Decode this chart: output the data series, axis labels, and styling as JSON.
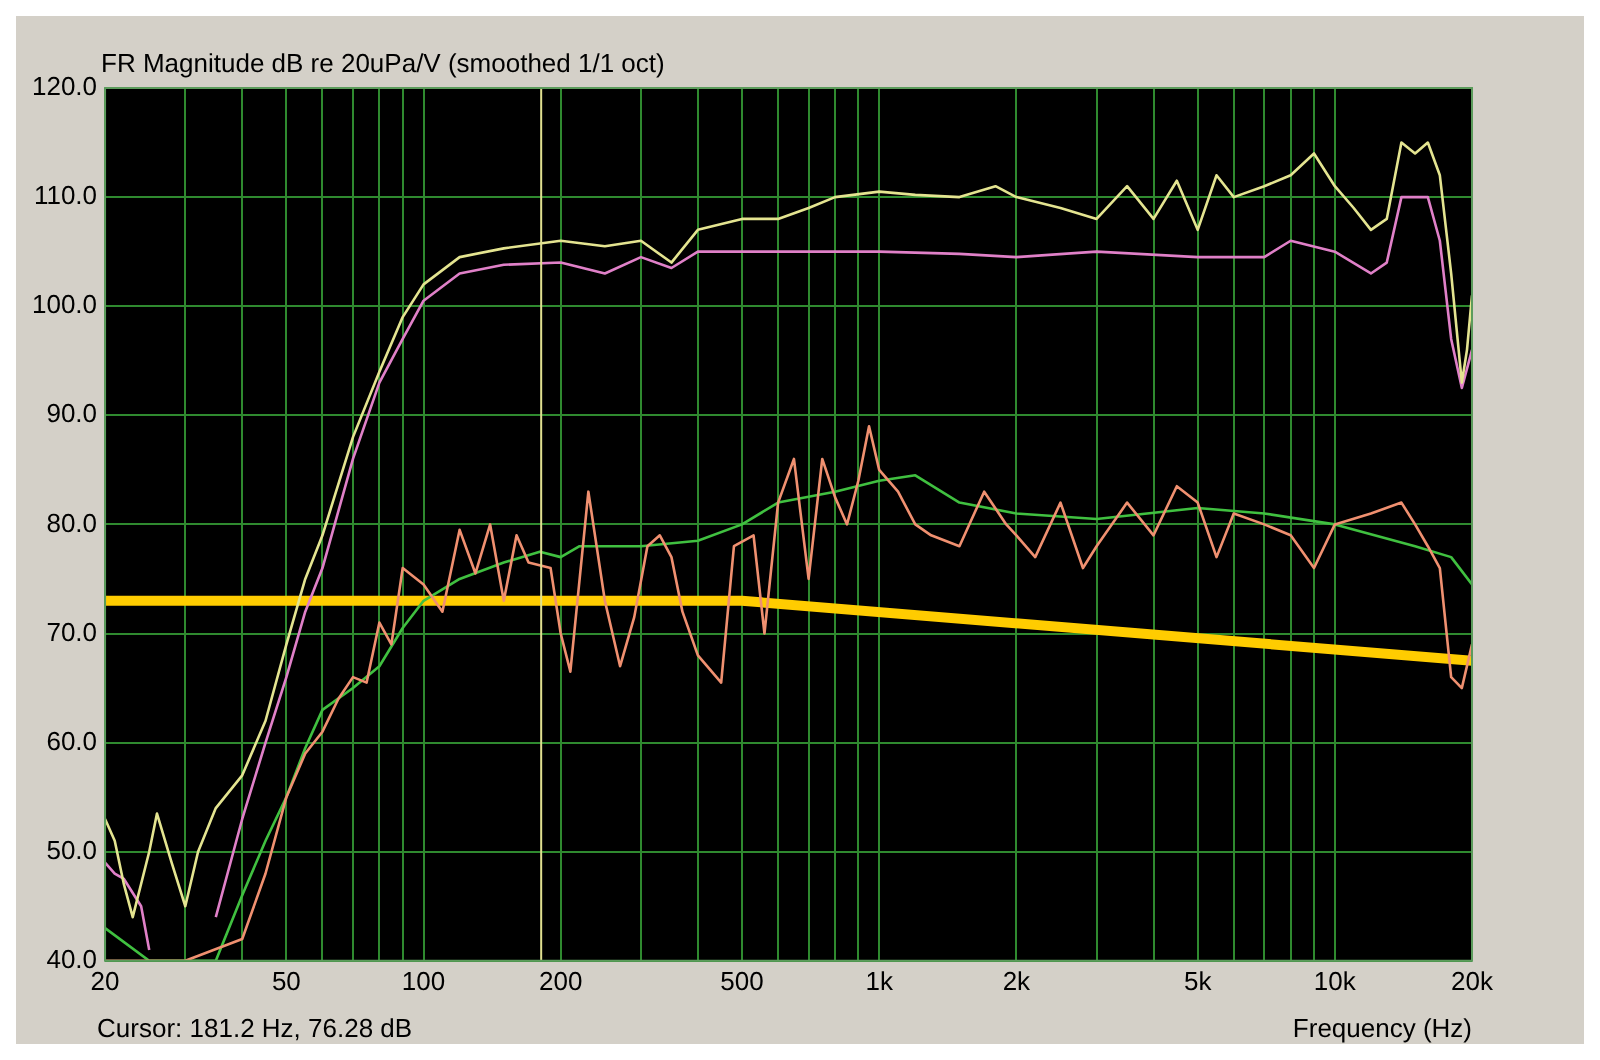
{
  "chart_data": {
    "type": "line",
    "title": "FR Magnitude dB re 20uPa/V (smoothed 1/1 oct)",
    "xlabel": "Frequency (Hz)",
    "log": "x",
    "grid": true,
    "legend": false,
    "marker": "none",
    "line_style": "solid",
    "xlim": [
      20,
      20000
    ],
    "xticks": [
      20,
      {
        "value": 30,
        "label": null
      },
      {
        "value": 40,
        "label": null
      },
      50,
      {
        "value": 60,
        "label": null
      },
      {
        "value": 70,
        "label": null
      },
      {
        "value": 80,
        "label": null
      },
      {
        "value": 90,
        "label": null
      },
      100,
      200,
      {
        "value": 300,
        "label": null
      },
      {
        "value": 400,
        "label": null
      },
      500,
      {
        "value": 600,
        "label": null
      },
      {
        "value": 700,
        "label": null
      },
      {
        "value": 800,
        "label": null
      },
      {
        "value": 900,
        "label": null
      },
      {
        "value": 1000,
        "label": "1k"
      },
      {
        "value": 2000,
        "label": "2k"
      },
      {
        "value": 3000,
        "label": null
      },
      {
        "value": 4000,
        "label": null
      },
      {
        "value": 5000,
        "label": "5k"
      },
      {
        "value": 6000,
        "label": null
      },
      {
        "value": 7000,
        "label": null
      },
      {
        "value": 8000,
        "label": null
      },
      {
        "value": 9000,
        "label": null
      },
      {
        "value": 10000,
        "label": "10k"
      },
      {
        "value": 20000,
        "label": "20k"
      }
    ],
    "ylim": [
      40,
      120
    ],
    "yticks": [
      {
        "value": 40,
        "label": "40.0"
      },
      {
        "value": 50,
        "label": "50.0"
      },
      {
        "value": 60,
        "label": "60.0"
      },
      {
        "value": 70,
        "label": "70.0"
      },
      {
        "value": 80,
        "label": "80.0"
      },
      {
        "value": 90,
        "label": "90.0"
      },
      {
        "value": 100,
        "label": "100.0"
      },
      {
        "value": 110,
        "label": "110.0"
      },
      {
        "value": 120,
        "label": "120.0"
      }
    ],
    "ref_lines": [
      {
        "axis": "x",
        "value": 181.2,
        "color": "#e0e090"
      }
    ],
    "annotations": [
      "Cursor: 181.2 Hz, 76.28 dB"
    ],
    "series": [
      {
        "color": "#e4e490",
        "x": [
          20,
          21,
          22,
          23,
          25,
          26,
          28,
          30,
          32,
          35,
          40,
          45,
          50,
          55,
          60,
          70,
          80,
          90,
          100,
          120,
          150,
          200,
          250,
          300,
          350,
          400,
          500,
          600,
          700,
          800,
          1000,
          1200,
          1500,
          1800,
          2000,
          2500,
          3000,
          3500,
          4000,
          4500,
          5000,
          5500,
          6000,
          7000,
          8000,
          9000,
          10000,
          11000,
          12000,
          13000,
          14000,
          15000,
          16000,
          17000,
          18000,
          19000,
          19500,
          20000
        ],
        "values": [
          53,
          51,
          47,
          44,
          50,
          53.5,
          49,
          45,
          50,
          54,
          57,
          62,
          69,
          75,
          79,
          88,
          94,
          99,
          102,
          104.5,
          105.3,
          106,
          105.5,
          106,
          104,
          107,
          108,
          108,
          109,
          110,
          110.5,
          110.2,
          110,
          111,
          110,
          109,
          108,
          111,
          108,
          111.5,
          107,
          112,
          110,
          111,
          112,
          114,
          111,
          109,
          107,
          108,
          115,
          114,
          115,
          112,
          103,
          93,
          96,
          101
        ]
      },
      {
        "color": "#e080c8",
        "x": [
          20,
          21,
          22,
          24,
          25,
          28,
          32,
          35,
          40,
          45,
          50,
          55,
          60,
          70,
          80,
          90,
          100,
          120,
          150,
          200,
          250,
          300,
          350,
          400,
          500,
          700,
          1000,
          1500,
          2000,
          3000,
          5000,
          7000,
          8000,
          10000,
          12000,
          13000,
          14000,
          16000,
          17000,
          18000,
          19000,
          20000
        ],
        "values": [
          49,
          48,
          47.5,
          45,
          41,
          null,
          null,
          44,
          53,
          60,
          66,
          72,
          76,
          86,
          93,
          97,
          100.5,
          103,
          103.8,
          104,
          103,
          104.5,
          103.5,
          105,
          105,
          105,
          105,
          104.8,
          104.5,
          105,
          104.5,
          104.5,
          106,
          105,
          103,
          104,
          110,
          110,
          106,
          97,
          92.5,
          96
        ]
      },
      {
        "color": "#f09070",
        "x": [
          20,
          30,
          40,
          45,
          50,
          55,
          60,
          65,
          70,
          75,
          80,
          85,
          90,
          100,
          110,
          120,
          130,
          140,
          150,
          160,
          170,
          190,
          200,
          210,
          230,
          250,
          270,
          290,
          310,
          330,
          350,
          370,
          400,
          450,
          480,
          530,
          560,
          600,
          650,
          700,
          750,
          800,
          850,
          900,
          950,
          1000,
          1100,
          1200,
          1300,
          1500,
          1700,
          1900,
          2000,
          2200,
          2500,
          2800,
          3000,
          3500,
          4000,
          4500,
          5000,
          5500,
          6000,
          7000,
          8000,
          9000,
          10000,
          12000,
          14000,
          15000,
          16000,
          17000,
          18000,
          19000,
          20000
        ],
        "values": [
          40,
          40,
          42,
          48,
          55,
          59,
          61,
          64,
          66,
          65.5,
          71,
          69,
          76,
          74.5,
          72,
          79.5,
          75.5,
          80,
          73,
          79,
          76.5,
          76,
          70,
          66.5,
          83,
          73,
          67,
          71.5,
          78,
          79,
          77,
          72,
          68,
          65.5,
          78,
          79,
          70,
          82,
          86,
          75,
          86,
          82.5,
          80,
          84,
          89,
          85,
          83,
          80,
          79,
          78,
          83,
          80,
          79,
          77,
          82,
          76,
          78,
          82,
          79,
          83.5,
          82,
          77,
          81,
          80,
          79,
          76,
          80,
          81,
          82,
          80,
          78,
          76,
          66,
          65,
          69
        ]
      },
      {
        "color": "#40c040",
        "x": [
          20,
          25,
          35,
          40,
          45,
          50,
          55,
          60,
          70,
          80,
          90,
          100,
          120,
          150,
          180,
          200,
          220,
          300,
          400,
          500,
          600,
          800,
          1000,
          1200,
          1500,
          2000,
          3000,
          5000,
          7000,
          10000,
          15000,
          18000,
          20000
        ],
        "values": [
          43,
          40,
          40,
          46,
          51,
          55,
          59.5,
          63,
          65,
          67,
          70.5,
          73,
          75,
          76.5,
          77.5,
          77,
          78,
          78,
          78.5,
          80,
          82,
          83,
          84,
          84.5,
          82,
          81,
          80.5,
          81.5,
          81,
          80,
          78,
          77,
          74.5
        ]
      },
      {
        "color": "#ffcc00",
        "x": [
          20,
          500,
          20000
        ],
        "values": [
          73,
          73,
          67.5
        ]
      }
    ]
  }
}
